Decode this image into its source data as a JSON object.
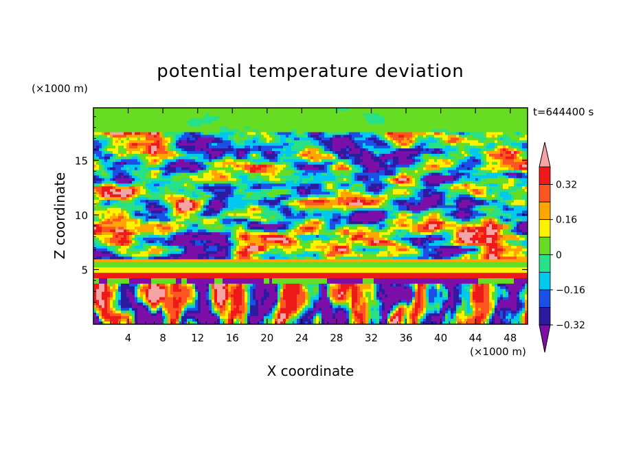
{
  "chart_data": {
    "type": "heatmap",
    "title": "potential temperature deviation",
    "xlabel": "X coordinate",
    "ylabel": "Z coordinate",
    "x_unit": "(×1000 m)",
    "y_unit": "(×1000 m)",
    "time_label": "t=644400 s",
    "xlim": [
      0,
      50
    ],
    "ylim": [
      0,
      19.8
    ],
    "x_ticks": [
      4,
      8,
      12,
      16,
      20,
      24,
      28,
      32,
      36,
      40,
      44,
      48
    ],
    "y_ticks": [
      5,
      10,
      15
    ],
    "colorbar": {
      "levels": [
        -0.4,
        -0.32,
        -0.24,
        -0.16,
        -0.08,
        0,
        0.08,
        0.16,
        0.24,
        0.32,
        0.4
      ],
      "tick_labels": [
        "0.32",
        "0.16",
        "0",
        "−0.16",
        "−0.32"
      ],
      "tick_values": [
        0.32,
        0.16,
        0,
        -0.16,
        -0.32
      ],
      "colors": [
        "#7b0fa8",
        "#2d1aa0",
        "#1c4fe6",
        "#00c8ee",
        "#28e088",
        "#66dd22",
        "#fff200",
        "#ffa600",
        "#ff5522",
        "#ee1a1a",
        "#f5a3a3"
      ]
    },
    "description": "Filled contour field of potential temperature deviation over an X–Z cross-section"
  }
}
